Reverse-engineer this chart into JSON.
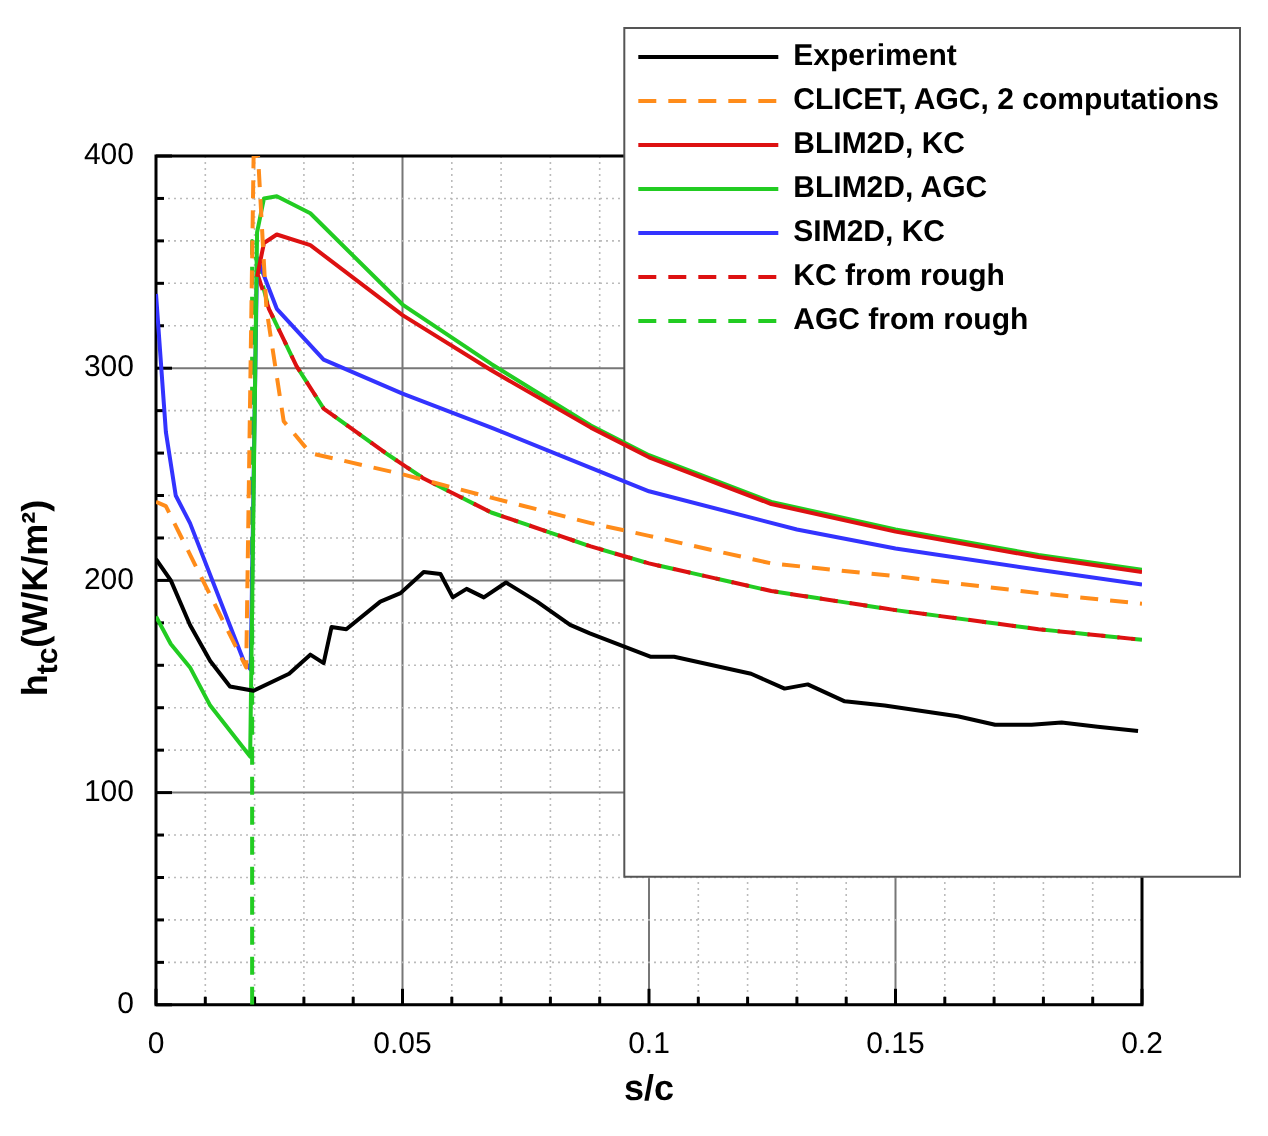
{
  "chart_data": {
    "type": "line",
    "xlabel": "s/c",
    "ylabel": "h$_{tc}$(W/K/m²)",
    "xlim": [
      0,
      0.2
    ],
    "ylim": [
      0,
      400
    ],
    "xticks": [
      0,
      {
        "value": 0.01,
        "label": null
      },
      {
        "value": 0.02,
        "label": null
      },
      {
        "value": 0.03,
        "label": null
      },
      {
        "value": 0.04,
        "label": null
      },
      0.05,
      {
        "value": 0.06,
        "label": null
      },
      {
        "value": 0.07,
        "label": null
      },
      {
        "value": 0.08,
        "label": null
      },
      {
        "value": 0.09,
        "label": null
      },
      0.1,
      {
        "value": 0.11,
        "label": null
      },
      {
        "value": 0.12,
        "label": null
      },
      {
        "value": 0.13,
        "label": null
      },
      {
        "value": 0.14,
        "label": null
      },
      0.15,
      {
        "value": 0.16,
        "label": null
      },
      {
        "value": 0.17,
        "label": null
      },
      {
        "value": 0.18,
        "label": null
      },
      {
        "value": 0.19,
        "label": null
      },
      0.2
    ],
    "yticks": [
      0,
      {
        "value": 20,
        "label": null
      },
      {
        "value": 40,
        "label": null
      },
      {
        "value": 60,
        "label": null
      },
      {
        "value": 80,
        "label": null
      },
      100,
      {
        "value": 120,
        "label": null
      },
      {
        "value": 140,
        "label": null
      },
      {
        "value": 160,
        "label": null
      },
      {
        "value": 180,
        "label": null
      },
      200,
      {
        "value": 220,
        "label": null
      },
      {
        "value": 240,
        "label": null
      },
      {
        "value": 260,
        "label": null
      },
      {
        "value": 280,
        "label": null
      },
      300,
      {
        "value": 320,
        "label": null
      },
      {
        "value": 340,
        "label": null
      },
      {
        "value": 360,
        "label": null
      },
      {
        "value": 380,
        "label": null
      },
      400
    ],
    "grid": true,
    "legend": "top right",
    "marker": "none",
    "series": [
      {
        "name": "Experiment",
        "color": "#000000",
        "line_style": "solid",
        "x": [
          0,
          0.003,
          0.0069,
          0.011,
          0.015,
          0.0198,
          0.027,
          0.0313,
          0.034,
          0.0356,
          0.0386,
          0.0455,
          0.0496,
          0.0543,
          0.0577,
          0.0602,
          0.063,
          0.0665,
          0.071,
          0.0773,
          0.084,
          0.088,
          0.1004,
          0.1051,
          0.1207,
          0.1275,
          0.1322,
          0.1397,
          0.1478,
          0.1626,
          0.1702,
          0.1776,
          0.1837,
          0.191,
          0.1992
        ],
        "values": [
          210,
          200,
          179,
          162,
          150,
          148,
          156,
          165,
          161,
          178,
          177,
          190,
          194,
          204,
          203,
          192,
          196,
          192,
          199,
          190,
          179,
          175,
          164,
          164,
          156,
          149,
          151,
          143,
          141,
          136,
          132,
          132,
          133,
          131,
          129
        ]
      },
      {
        "name": "CLICET, AGC, 2 computations",
        "color": "#ff8c1a",
        "line_style": "dashed",
        "x": [
          0,
          0.002,
          0.0183,
          0.0198,
          0.0207,
          0.0224,
          0.0259,
          0.0313,
          0.05,
          0.068,
          0.0882,
          0.1,
          0.1248,
          0.15,
          0.179,
          0.2
        ],
        "values": [
          237,
          235,
          159,
          400,
          400,
          328,
          275,
          260,
          250,
          239,
          227,
          221,
          208,
          202,
          194,
          189
        ]
      },
      {
        "name": "BLIM2D, KC",
        "color": "#dd1111",
        "line_style": "solid",
        "x": [
          0.0205,
          0.0219,
          0.0245,
          0.0313,
          0.05,
          0.068,
          0.0882,
          0.1,
          0.1248,
          0.15,
          0.179,
          0.2
        ],
        "values": [
          343,
          359,
          363,
          358,
          325,
          299,
          272,
          258,
          236,
          223,
          211,
          204
        ]
      },
      {
        "name": "BLIM2D, AGC",
        "color": "#22cc22",
        "line_style": "solid",
        "x": [
          0,
          0.003,
          0.0069,
          0.011,
          0.0191,
          0.0205,
          0.0219,
          0.0245,
          0.0313,
          0.05,
          0.068,
          0.0882,
          0.1,
          0.1248,
          0.15,
          0.179,
          0.2
        ],
        "values": [
          183,
          170,
          159,
          141,
          117,
          364,
          380,
          381,
          373,
          330,
          302,
          273,
          259,
          237,
          224,
          212,
          205
        ]
      },
      {
        "name": "SIM2D, KC",
        "color": "#3333ff",
        "line_style": "solid",
        "x": [
          0,
          0.002,
          0.004,
          0.0069,
          0.0178,
          0.0192,
          0.0205,
          0.0245,
          0.034,
          0.05,
          0.068,
          0.0882,
          0.1,
          0.13,
          0.15,
          0.179,
          0.2
        ],
        "values": [
          335,
          270,
          240,
          227,
          162,
          158,
          352,
          328,
          304,
          288,
          272,
          253,
          242,
          224,
          215,
          205,
          198
        ]
      },
      {
        "name": "KC from rough",
        "color": "#dd1111",
        "line_style": "dashed",
        "x": [
          0.0205,
          0.0229,
          0.0285,
          0.034,
          0.0466,
          0.0543,
          0.068,
          0.0882,
          0.1,
          0.1248,
          0.15,
          0.179,
          0.2
        ],
        "values": [
          345,
          328,
          301,
          281,
          260,
          248,
          232,
          216,
          208,
          195,
          186,
          177,
          172
        ]
      },
      {
        "name": "AGC from rough",
        "color": "#22cc22",
        "line_style": "dashed",
        "x": [
          0.0195,
          0.0195,
          0.021,
          0.0229,
          0.0285,
          0.034,
          0.0466,
          0.0543,
          0.068,
          0.0882,
          0.1,
          0.1248,
          0.15,
          0.179,
          0.2
        ],
        "values": [
          0,
          360,
          345,
          328,
          301,
          281,
          260,
          248,
          232,
          216,
          208,
          195,
          186,
          177,
          172
        ]
      }
    ]
  }
}
